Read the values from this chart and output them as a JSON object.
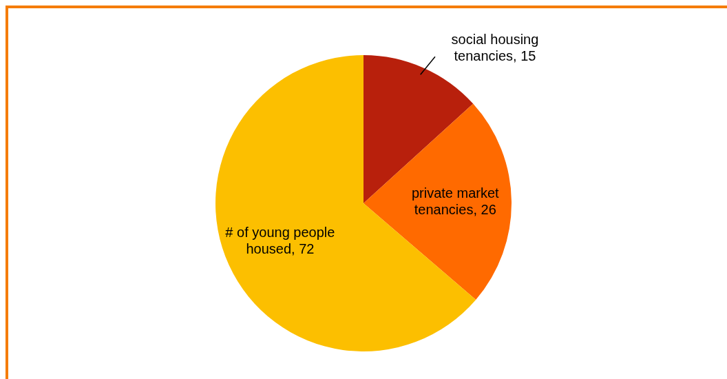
{
  "chart_data": {
    "type": "pie",
    "categories": [
      "social housing tenancies",
      "private market tenancies",
      "# of young people housed"
    ],
    "values": [
      15,
      26,
      72
    ],
    "colors": [
      "#b8200c",
      "#ff6a00",
      "#fcbf00"
    ],
    "value_labels": [
      ", 15",
      ", 26",
      ", 72"
    ],
    "legend": false
  }
}
